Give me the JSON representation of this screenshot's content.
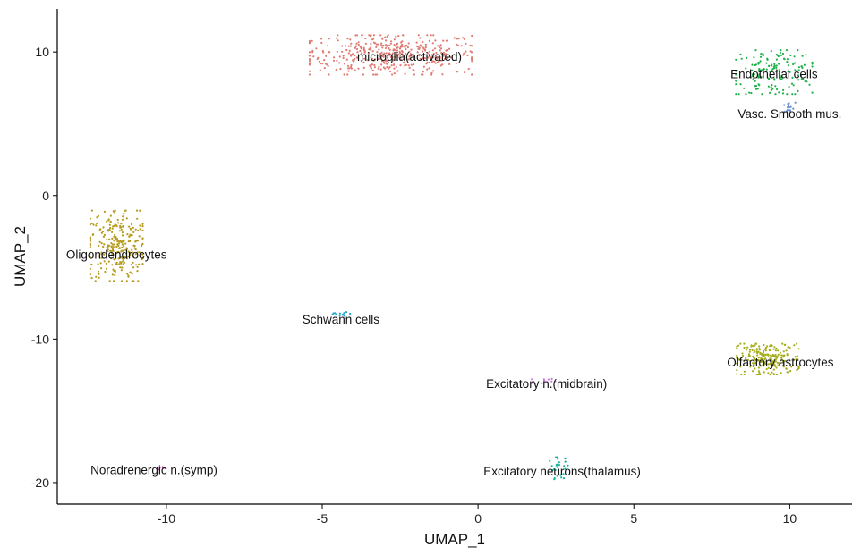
{
  "chart_data": {
    "type": "scatter",
    "title": "",
    "xlabel": "UMAP_1",
    "ylabel": "UMAP_2",
    "xlim": [
      -13.5,
      12.0
    ],
    "ylim": [
      -21.5,
      13.0
    ],
    "xticks": [
      -10,
      -5,
      0,
      5,
      10
    ],
    "yticks": [
      -20,
      -10,
      0,
      10
    ],
    "grid": false,
    "legend": "none",
    "clusters": [
      {
        "label": "microglia(activated)",
        "color": "#E07B72",
        "center": [
          -2.8,
          9.8
        ],
        "spread": [
          1.7,
          0.9
        ],
        "n": 420,
        "label_pos": [
          -2.2,
          9.7
        ]
      },
      {
        "label": "Endothelial cells",
        "color": "#1FB24A",
        "center": [
          9.5,
          8.6
        ],
        "spread": [
          0.8,
          1.0
        ],
        "n": 150,
        "label_pos": [
          9.5,
          8.5
        ]
      },
      {
        "label": "Vasc. Smooth mus.",
        "color": "#6A8FD2",
        "center": [
          9.95,
          6.1
        ],
        "spread": [
          0.15,
          0.25
        ],
        "n": 14,
        "label_pos": [
          10.0,
          5.7
        ]
      },
      {
        "label": "Oligondendrocytes",
        "color": "#B69A1E",
        "center": [
          -11.6,
          -3.5
        ],
        "spread": [
          0.55,
          1.6
        ],
        "n": 260,
        "label_pos": [
          -11.6,
          -4.1
        ]
      },
      {
        "label": "Schwann cells",
        "color": "#21A6C9",
        "center": [
          -4.4,
          -8.3
        ],
        "spread": [
          0.25,
          0.12
        ],
        "n": 14,
        "label_pos": [
          -4.4,
          -8.6
        ]
      },
      {
        "label": "Olfactory astrocytes",
        "color": "#A7AE1B",
        "center": [
          9.3,
          -11.4
        ],
        "spread": [
          0.65,
          0.7
        ],
        "n": 230,
        "label_pos": [
          9.7,
          -11.6
        ]
      },
      {
        "label": "Excitatory n.(midbrain)",
        "color": "#C77CDE",
        "center": [
          2.1,
          -12.9
        ],
        "spread": [
          0.25,
          0.12
        ],
        "n": 12,
        "label_pos": [
          2.2,
          -13.1
        ]
      },
      {
        "label": "Excitatory neurons(thalamus)",
        "color": "#15B39A",
        "center": [
          2.6,
          -19.0
        ],
        "spread": [
          0.2,
          0.5
        ],
        "n": 28,
        "label_pos": [
          2.7,
          -19.2
        ]
      },
      {
        "label": "Noradrenergic n.(symp)",
        "color": "#D56BC4",
        "center": [
          -10.1,
          -19.0
        ],
        "spread": [
          0.12,
          0.06
        ],
        "n": 6,
        "label_pos": [
          -10.4,
          -19.1
        ]
      }
    ]
  }
}
